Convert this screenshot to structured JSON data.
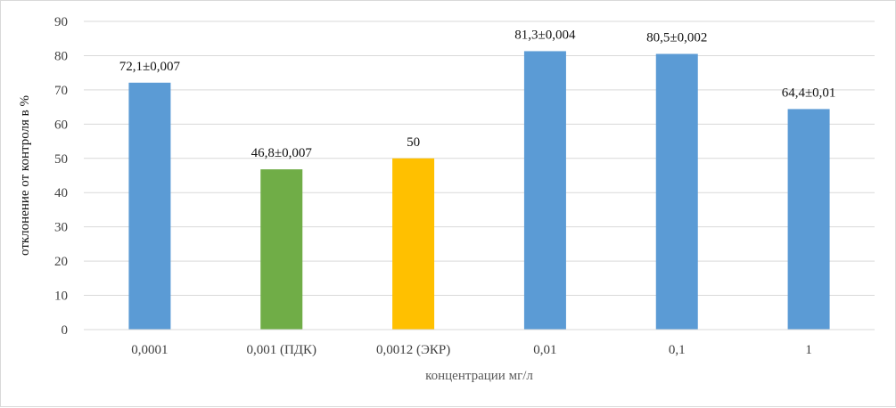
{
  "chart_data": {
    "type": "bar",
    "title": "",
    "xlabel": "концентрации мг/л",
    "ylabel": "отклонение от контроля в %",
    "ylim": [
      0,
      90
    ],
    "yticks": [
      0,
      10,
      20,
      30,
      40,
      50,
      60,
      70,
      80,
      90
    ],
    "grid": true,
    "legend": "none",
    "categories": [
      "0,0001",
      "0,001 (ПДК)",
      "0,0012 (ЭКР)",
      "0,01",
      "0,1",
      "1"
    ],
    "values": [
      72.1,
      46.8,
      50,
      81.3,
      80.5,
      64.4
    ],
    "data_labels": [
      "72,1±0,007",
      "46,8±0,007",
      "50",
      "81,3±0,004",
      "80,5±0,002",
      "64,4±0,01"
    ],
    "bar_colors": [
      "#5b9bd5",
      "#70ad47",
      "#ffc000",
      "#5b9bd5",
      "#5b9bd5",
      "#5b9bd5"
    ]
  }
}
